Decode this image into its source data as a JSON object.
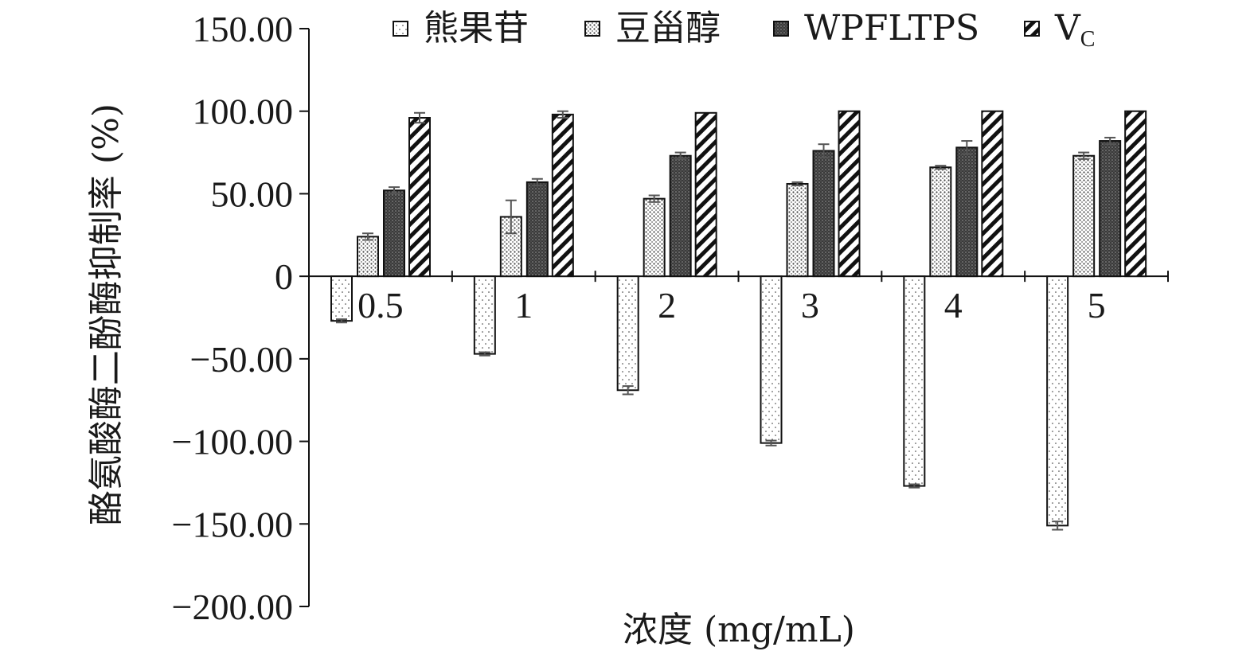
{
  "chart_data": {
    "type": "bar",
    "ylabel": "酪氨酸酶二酚酶抑制率 (%)",
    "xlabel": "浓度 (mg/mL)",
    "categories": [
      "0.5",
      "1",
      "2",
      "3",
      "4",
      "5"
    ],
    "ylim": [
      -200,
      150
    ],
    "yticks": [
      150,
      100,
      50,
      0,
      -50,
      -100,
      -150,
      -200
    ],
    "ytick_labels": [
      "150.00",
      "100.00",
      "50.00",
      "0",
      "−50.00",
      "−100.00",
      "−150.00",
      "−200.00"
    ],
    "legend_position": "top",
    "grid": false,
    "series": [
      {
        "name": "熊果苷",
        "pattern": "sparse-dots",
        "values": [
          -27,
          -47,
          -69,
          -101,
          -127,
          -151
        ],
        "errors": [
          1,
          1,
          2.5,
          1.5,
          1,
          2.5
        ]
      },
      {
        "name": "豆甾醇",
        "pattern": "dense-dots",
        "values": [
          24,
          36,
          47,
          56,
          66,
          73
        ],
        "errors": [
          2,
          10,
          2,
          1,
          1,
          2
        ]
      },
      {
        "name": "WPFLTPS",
        "pattern": "dark-dots",
        "values": [
          52,
          57,
          73,
          76,
          78,
          82
        ],
        "errors": [
          2,
          2,
          2,
          4,
          4,
          2
        ]
      },
      {
        "name": "V",
        "name_subscript": "C",
        "pattern": "diagonal-hatch",
        "values": [
          96,
          98,
          99,
          100,
          100,
          100
        ],
        "errors": [
          3,
          2,
          0,
          0,
          0,
          0
        ]
      }
    ]
  }
}
